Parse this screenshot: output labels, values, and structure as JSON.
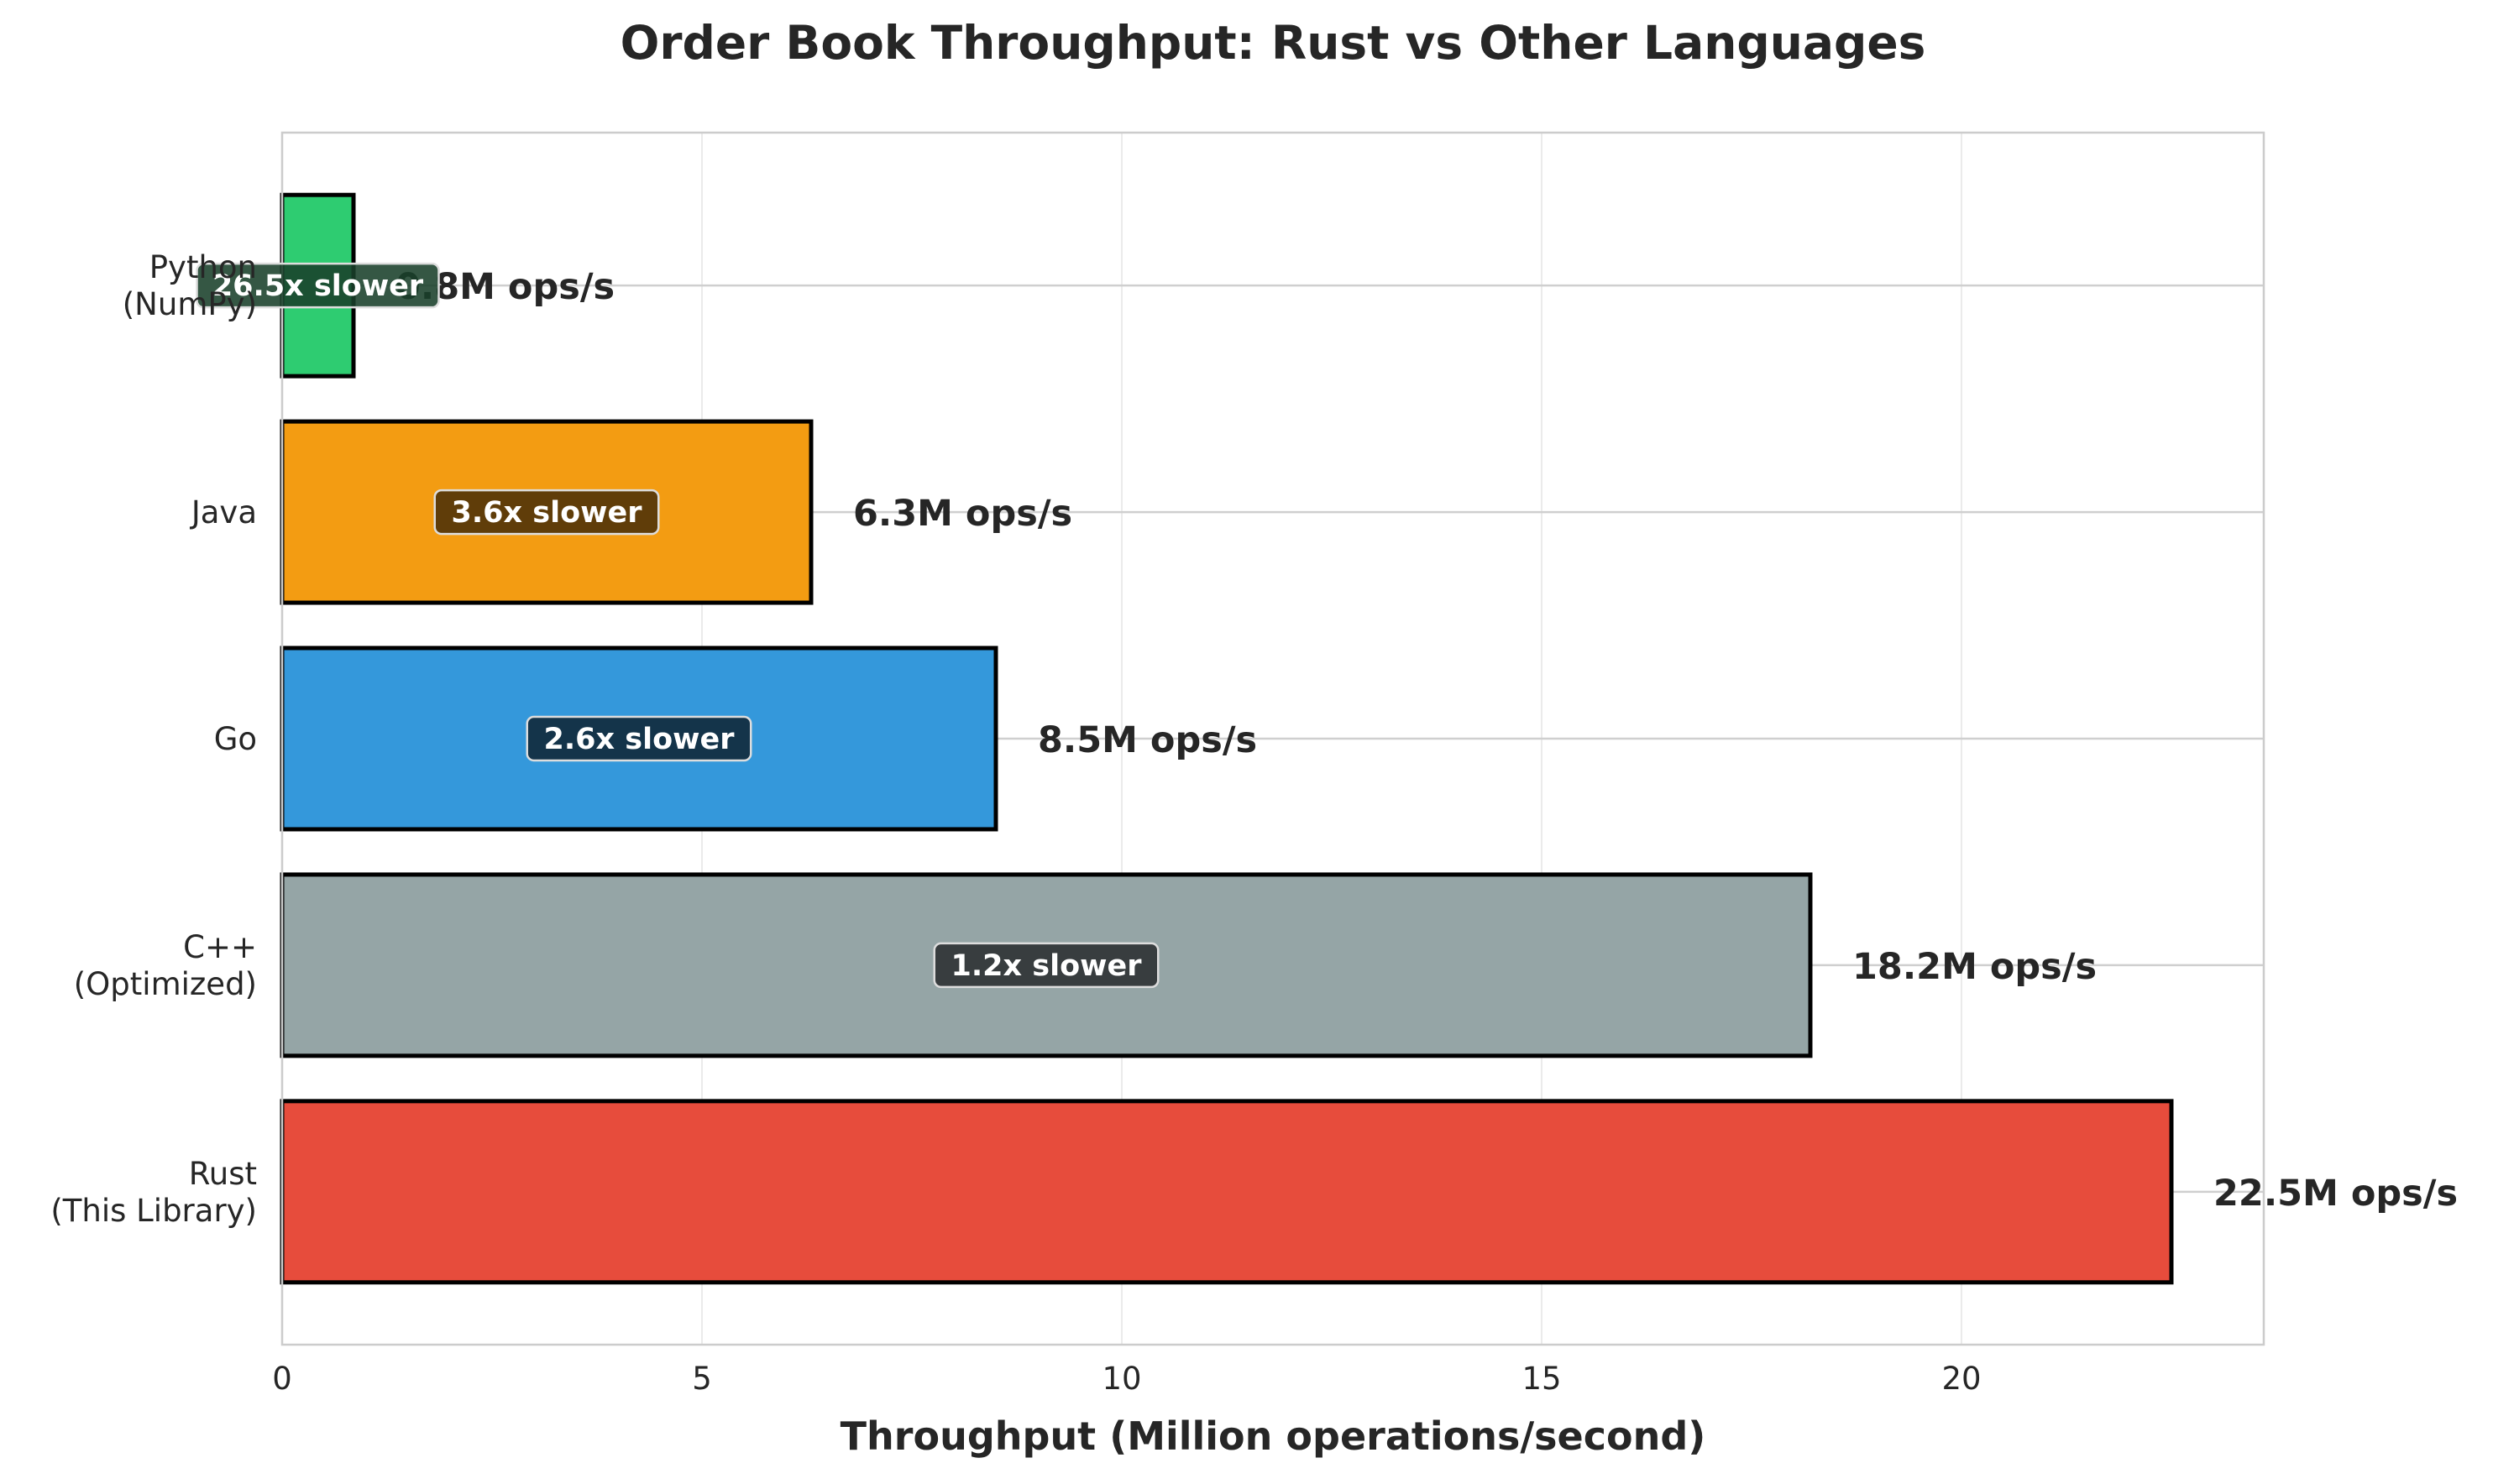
{
  "chart_data": {
    "type": "bar",
    "orientation": "horizontal",
    "title": "Order Book Throughput: Rust vs Other Languages",
    "xlabel": "Throughput (Million operations/second)",
    "ylabel": "",
    "xlim": [
      0,
      23.6
    ],
    "xticks": [
      "0",
      "5",
      "10",
      "15",
      "20"
    ],
    "grid": true,
    "categories": [
      "Rust\n(This Library)",
      "C++\n(Optimized)",
      "Go",
      "Java",
      "Python\n(NumPy)"
    ],
    "values": [
      22.5,
      18.2,
      8.5,
      6.3,
      0.85
    ],
    "value_labels": [
      "22.5M ops/s",
      "18.2M ops/s",
      "8.5M ops/s",
      "6.3M ops/s",
      "0.8M ops/s"
    ],
    "ratio_labels": [
      "",
      "1.2x slower",
      "2.6x slower",
      "3.6x slower",
      "26.5x slower"
    ],
    "colors": [
      "#e74c3c",
      "#95a5a6",
      "#3498db",
      "#f39c12",
      "#2ecc71"
    ],
    "ratio_box_colors": [
      "",
      "#2b2f31",
      "#102636",
      "#4b3008",
      "#19402a"
    ]
  }
}
